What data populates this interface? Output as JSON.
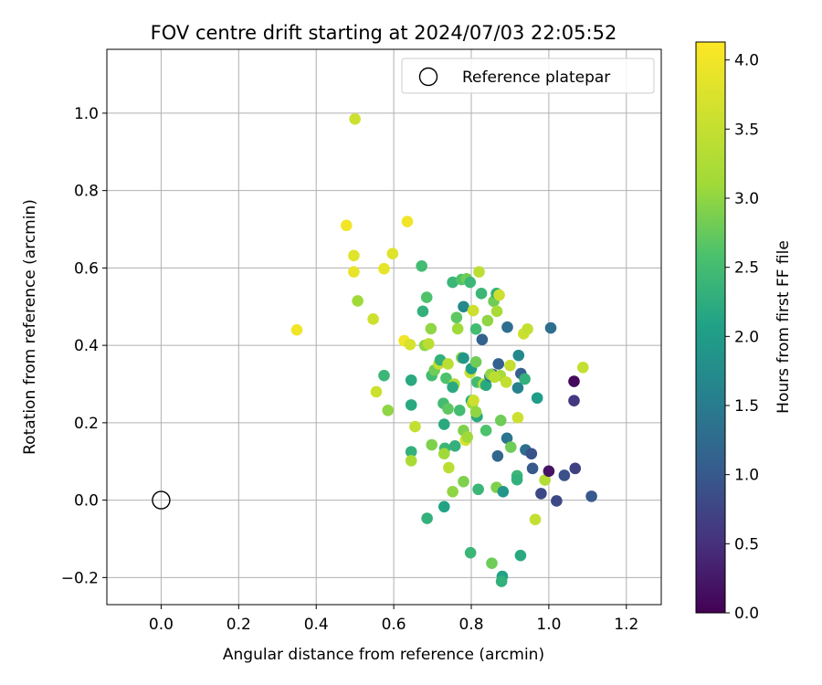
{
  "chart_data": {
    "type": "scatter",
    "title": "FOV centre drift starting at 2024/07/03 22:05:52",
    "xlabel": "Angular distance from reference (arcmin)",
    "ylabel": "Rotation from reference (arcmin)",
    "xlim": [
      -0.14,
      1.29
    ],
    "ylim": [
      -0.27,
      1.165
    ],
    "xticks": [
      "0.0",
      "0.2",
      "0.4",
      "0.6",
      "0.8",
      "1.0",
      "1.2"
    ],
    "xtick_values": [
      0.0,
      0.2,
      0.4,
      0.6,
      0.8,
      1.0,
      1.2
    ],
    "yticks": [
      "−0.2",
      "0.0",
      "0.2",
      "0.4",
      "0.6",
      "0.8",
      "1.0"
    ],
    "ytick_values": [
      -0.2,
      0.0,
      0.2,
      0.4,
      0.6,
      0.8,
      1.0
    ],
    "grid": true,
    "legend": {
      "position": "top-right",
      "entries": [
        "Reference platepar"
      ]
    },
    "reference_point": {
      "x": 0.0,
      "y": 0.0
    },
    "colorbar": {
      "label": "Hours from first FF file",
      "range": [
        0.0,
        4.13
      ],
      "ticks": [
        "0.0",
        "0.5",
        "1.0",
        "1.5",
        "2.0",
        "2.5",
        "3.0",
        "3.5",
        "4.0"
      ],
      "tick_values": [
        0.0,
        0.5,
        1.0,
        1.5,
        2.0,
        2.5,
        3.0,
        3.5,
        4.0
      ],
      "colormap": "viridis"
    },
    "points": [
      {
        "x": 0.5,
        "y": 0.985,
        "c": 3.6
      },
      {
        "x": 0.35,
        "y": 0.44,
        "c": 4.0
      },
      {
        "x": 0.478,
        "y": 0.71,
        "c": 4.0
      },
      {
        "x": 0.635,
        "y": 0.72,
        "c": 4.0
      },
      {
        "x": 0.497,
        "y": 0.632,
        "c": 3.8
      },
      {
        "x": 0.497,
        "y": 0.59,
        "c": 3.9
      },
      {
        "x": 0.575,
        "y": 0.598,
        "c": 3.9
      },
      {
        "x": 0.597,
        "y": 0.637,
        "c": 3.8
      },
      {
        "x": 0.507,
        "y": 0.515,
        "c": 3.1
      },
      {
        "x": 0.547,
        "y": 0.468,
        "c": 3.6
      },
      {
        "x": 0.627,
        "y": 0.412,
        "c": 4.0
      },
      {
        "x": 0.642,
        "y": 0.402,
        "c": 3.7
      },
      {
        "x": 0.555,
        "y": 0.28,
        "c": 3.6
      },
      {
        "x": 0.575,
        "y": 0.322,
        "c": 2.4
      },
      {
        "x": 0.585,
        "y": 0.232,
        "c": 3.0
      },
      {
        "x": 0.645,
        "y": 0.31,
        "c": 2.2
      },
      {
        "x": 0.645,
        "y": 0.246,
        "c": 2.2
      },
      {
        "x": 0.645,
        "y": 0.125,
        "c": 2.3
      },
      {
        "x": 0.645,
        "y": 0.102,
        "c": 3.2
      },
      {
        "x": 0.655,
        "y": 0.19,
        "c": 3.5
      },
      {
        "x": 0.672,
        "y": 0.605,
        "c": 2.5
      },
      {
        "x": 0.675,
        "y": 0.488,
        "c": 2.3
      },
      {
        "x": 0.685,
        "y": 0.524,
        "c": 2.6
      },
      {
        "x": 0.68,
        "y": 0.4,
        "c": 3.0
      },
      {
        "x": 0.69,
        "y": 0.404,
        "c": 3.4
      },
      {
        "x": 0.696,
        "y": 0.443,
        "c": 3.0
      },
      {
        "x": 0.698,
        "y": 0.322,
        "c": 2.5
      },
      {
        "x": 0.705,
        "y": 0.336,
        "c": 2.8
      },
      {
        "x": 0.716,
        "y": 0.352,
        "c": 3.5
      },
      {
        "x": 0.72,
        "y": 0.362,
        "c": 2.3
      },
      {
        "x": 0.698,
        "y": 0.143,
        "c": 2.9
      },
      {
        "x": 0.686,
        "y": -0.047,
        "c": 2.3
      },
      {
        "x": 0.728,
        "y": 0.25,
        "c": 2.5
      },
      {
        "x": 0.73,
        "y": 0.196,
        "c": 2.2
      },
      {
        "x": 0.732,
        "y": 0.134,
        "c": 2.4
      },
      {
        "x": 0.73,
        "y": 0.12,
        "c": 3.1
      },
      {
        "x": 0.735,
        "y": 0.315,
        "c": 2.6
      },
      {
        "x": 0.74,
        "y": 0.352,
        "c": 3.4
      },
      {
        "x": 0.74,
        "y": 0.236,
        "c": 2.7
      },
      {
        "x": 0.742,
        "y": 0.084,
        "c": 3.4
      },
      {
        "x": 0.73,
        "y": -0.017,
        "c": 2.1
      },
      {
        "x": 0.752,
        "y": 0.563,
        "c": 2.4
      },
      {
        "x": 0.756,
        "y": 0.3,
        "c": 3.3
      },
      {
        "x": 0.752,
        "y": 0.292,
        "c": 2.2
      },
      {
        "x": 0.758,
        "y": 0.14,
        "c": 2.3
      },
      {
        "x": 0.752,
        "y": 0.022,
        "c": 3.0
      },
      {
        "x": 0.765,
        "y": 0.443,
        "c": 3.1
      },
      {
        "x": 0.762,
        "y": 0.472,
        "c": 2.7
      },
      {
        "x": 0.77,
        "y": 0.232,
        "c": 2.5
      },
      {
        "x": 0.775,
        "y": 0.57,
        "c": 2.6
      },
      {
        "x": 0.788,
        "y": 0.572,
        "c": 2.8
      },
      {
        "x": 0.775,
        "y": 0.368,
        "c": 2.9
      },
      {
        "x": 0.78,
        "y": 0.367,
        "c": 1.9
      },
      {
        "x": 0.78,
        "y": 0.18,
        "c": 2.9
      },
      {
        "x": 0.785,
        "y": 0.155,
        "c": 3.7
      },
      {
        "x": 0.78,
        "y": 0.048,
        "c": 2.9
      },
      {
        "x": 0.78,
        "y": 0.5,
        "c": 1.7
      },
      {
        "x": 0.797,
        "y": 0.563,
        "c": 2.4
      },
      {
        "x": 0.79,
        "y": 0.163,
        "c": 3.1
      },
      {
        "x": 0.797,
        "y": 0.33,
        "c": 3.5
      },
      {
        "x": 0.8,
        "y": 0.34,
        "c": 2.0
      },
      {
        "x": 0.8,
        "y": 0.257,
        "c": 2.2
      },
      {
        "x": 0.803,
        "y": 0.25,
        "c": 3.1
      },
      {
        "x": 0.806,
        "y": 0.258,
        "c": 3.6
      },
      {
        "x": 0.798,
        "y": -0.136,
        "c": 2.4
      },
      {
        "x": 0.805,
        "y": 0.49,
        "c": 3.6
      },
      {
        "x": 0.812,
        "y": 0.442,
        "c": 2.5
      },
      {
        "x": 0.812,
        "y": 0.357,
        "c": 2.8
      },
      {
        "x": 0.815,
        "y": 0.305,
        "c": 2.5
      },
      {
        "x": 0.815,
        "y": 0.216,
        "c": 2.2
      },
      {
        "x": 0.812,
        "y": 0.228,
        "c": 3.0
      },
      {
        "x": 0.82,
        "y": 0.59,
        "c": 3.4
      },
      {
        "x": 0.826,
        "y": 0.534,
        "c": 2.4
      },
      {
        "x": 0.818,
        "y": 0.028,
        "c": 2.4
      },
      {
        "x": 0.828,
        "y": 0.415,
        "c": 1.1
      },
      {
        "x": 0.832,
        "y": 0.3,
        "c": 3.2
      },
      {
        "x": 0.838,
        "y": 0.297,
        "c": 2.2
      },
      {
        "x": 0.838,
        "y": 0.18,
        "c": 2.6
      },
      {
        "x": 0.842,
        "y": 0.464,
        "c": 3.0
      },
      {
        "x": 0.848,
        "y": 0.32,
        "c": 1.5
      },
      {
        "x": 0.855,
        "y": 0.325,
        "c": 0.9
      },
      {
        "x": 0.858,
        "y": 0.514,
        "c": 2.8
      },
      {
        "x": 0.85,
        "y": 0.325,
        "c": 3.0
      },
      {
        "x": 0.853,
        "y": -0.163,
        "c": 2.8
      },
      {
        "x": 0.865,
        "y": 0.534,
        "c": 2.3
      },
      {
        "x": 0.872,
        "y": 0.53,
        "c": 3.6
      },
      {
        "x": 0.866,
        "y": 0.488,
        "c": 3.2
      },
      {
        "x": 0.87,
        "y": 0.352,
        "c": 1.1
      },
      {
        "x": 0.875,
        "y": 0.322,
        "c": 3.2
      },
      {
        "x": 0.86,
        "y": 0.318,
        "c": 3.4
      },
      {
        "x": 0.868,
        "y": 0.114,
        "c": 1.2
      },
      {
        "x": 0.865,
        "y": 0.033,
        "c": 2.9
      },
      {
        "x": 0.876,
        "y": 0.206,
        "c": 2.8
      },
      {
        "x": 0.882,
        "y": 0.022,
        "c": 1.9
      },
      {
        "x": 0.88,
        "y": -0.197,
        "c": 2.1
      },
      {
        "x": 0.878,
        "y": -0.21,
        "c": 2.3
      },
      {
        "x": 0.89,
        "y": 0.305,
        "c": 3.5
      },
      {
        "x": 0.893,
        "y": 0.447,
        "c": 1.3
      },
      {
        "x": 0.892,
        "y": 0.16,
        "c": 1.4
      },
      {
        "x": 0.9,
        "y": 0.348,
        "c": 3.5
      },
      {
        "x": 0.902,
        "y": 0.137,
        "c": 2.8
      },
      {
        "x": 0.918,
        "y": 0.063,
        "c": 2.4
      },
      {
        "x": 0.918,
        "y": 0.053,
        "c": 2.3
      },
      {
        "x": 0.92,
        "y": 0.29,
        "c": 1.6
      },
      {
        "x": 0.922,
        "y": 0.374,
        "c": 1.7
      },
      {
        "x": 0.92,
        "y": 0.213,
        "c": 3.6
      },
      {
        "x": 0.928,
        "y": 0.327,
        "c": 1.1
      },
      {
        "x": 0.935,
        "y": 0.43,
        "c": 3.6
      },
      {
        "x": 0.938,
        "y": 0.313,
        "c": 2.3
      },
      {
        "x": 0.945,
        "y": 0.442,
        "c": 3.5
      },
      {
        "x": 0.927,
        "y": -0.143,
        "c": 2.2
      },
      {
        "x": 0.94,
        "y": 0.13,
        "c": 1.3
      },
      {
        "x": 0.955,
        "y": 0.12,
        "c": 0.9
      },
      {
        "x": 0.958,
        "y": 0.082,
        "c": 1.0
      },
      {
        "x": 0.965,
        "y": -0.05,
        "c": 3.5
      },
      {
        "x": 0.97,
        "y": 0.264,
        "c": 2.0
      },
      {
        "x": 0.98,
        "y": 0.017,
        "c": 0.8
      },
      {
        "x": 0.99,
        "y": 0.052,
        "c": 3.3
      },
      {
        "x": 1.0,
        "y": 0.075,
        "c": 0.2
      },
      {
        "x": 1.005,
        "y": 0.445,
        "c": 1.3
      },
      {
        "x": 1.02,
        "y": -0.002,
        "c": 0.8
      },
      {
        "x": 1.04,
        "y": 0.064,
        "c": 0.9
      },
      {
        "x": 1.065,
        "y": 0.307,
        "c": 0.1
      },
      {
        "x": 1.065,
        "y": 0.257,
        "c": 0.6
      },
      {
        "x": 1.068,
        "y": 0.082,
        "c": 0.7
      },
      {
        "x": 1.088,
        "y": 0.343,
        "c": 3.5
      },
      {
        "x": 1.11,
        "y": 0.01,
        "c": 1.0
      }
    ]
  }
}
